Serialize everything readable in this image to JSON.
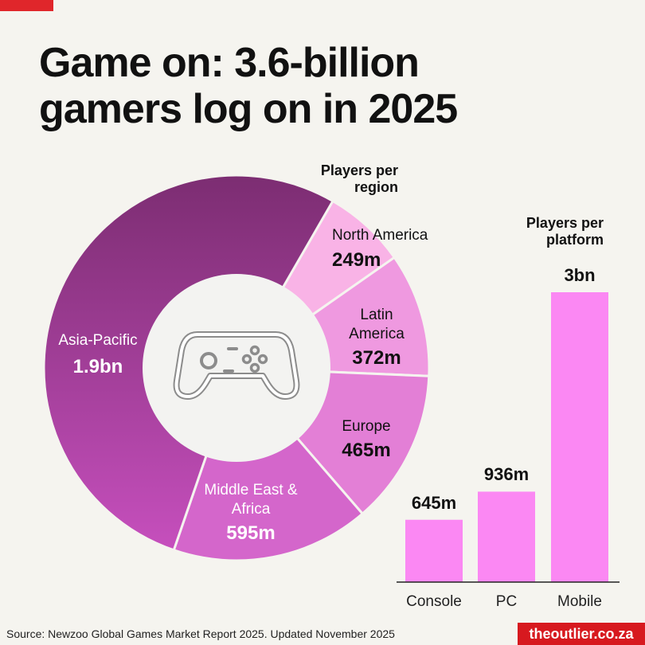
{
  "title_line1": "Game on: 3.6-billion",
  "title_line2": "gamers log on in 2025",
  "icon": "gamepad-icon",
  "colors": {
    "accent": "#e0262b",
    "asia_pacific": "#a0389b",
    "north_america": "#f9b3e6",
    "latin_america": "#ef99e0",
    "europe": "#e37fd6",
    "middle_east_africa": "#d466cb",
    "bars": "#fb88f3"
  },
  "chart_data": [
    {
      "type": "pie",
      "subtitle_line1": "Players per",
      "subtitle_line2": "region",
      "categories": [
        "North America",
        "Latin America",
        "Europe",
        "Middle East & Africa",
        "Asia-Pacific"
      ],
      "values": [
        249,
        372,
        465,
        595,
        1900
      ],
      "labels": [
        "249m",
        "372m",
        "465m",
        "595m",
        "1.9bn"
      ],
      "names_multiline": {
        "latin_line1": "Latin",
        "latin_line2": "America",
        "mea_line1": "Middle East &",
        "mea_line2": "Africa"
      }
    },
    {
      "type": "bar",
      "subtitle_line1": "Players per",
      "subtitle_line2": "platform",
      "categories": [
        "Console",
        "PC",
        "Mobile"
      ],
      "values": [
        645,
        936,
        3000
      ],
      "labels": [
        "645m",
        "936m",
        "3bn"
      ]
    }
  ],
  "source": "Source: Newzoo Global Games Market Report 2025. Updated November 2025",
  "brand": "theoutlier.co.za"
}
